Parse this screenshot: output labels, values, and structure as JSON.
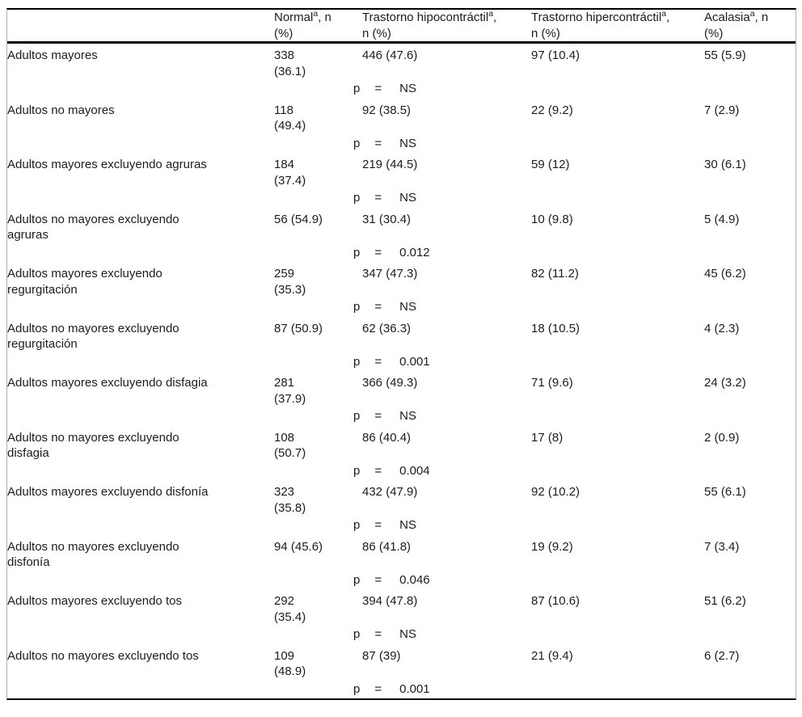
{
  "page": {
    "background": "#ffffff",
    "text_color": "#1c1c1c",
    "rule_color": "#000000"
  },
  "table": {
    "p_label": "p",
    "p_eq": "=",
    "header": {
      "label_col": "",
      "cols": [
        {
          "pre": "Normal",
          "sup": "a",
          "post": ", n",
          "line2": "(%)"
        },
        {
          "pre": "Trastorno hipocontráctil",
          "sup": "a",
          "post": ",",
          "line2": "n (%)"
        },
        {
          "pre": "Trastorno hipercontráctil",
          "sup": "a",
          "post": ",",
          "line2": "n (%)"
        },
        {
          "pre": "Acalasia",
          "sup": "a",
          "post": ", n",
          "line2": "(%)"
        }
      ]
    },
    "rows": [
      {
        "type": "data",
        "label_lines": [
          "Adultos mayores"
        ],
        "normal_lines": [
          "338",
          "(36.1)"
        ],
        "hipo": "446 (47.6)",
        "hiper": "97 (10.4)",
        "acalasia": "55 (5.9)"
      },
      {
        "type": "p",
        "value": "NS"
      },
      {
        "type": "data",
        "label_lines": [
          "Adultos no mayores"
        ],
        "normal_lines": [
          "118",
          "(49.4)"
        ],
        "hipo": "92 (38.5)",
        "hiper": "22 (9.2)",
        "acalasia": "7 (2.9)"
      },
      {
        "type": "p",
        "value": "NS"
      },
      {
        "type": "data",
        "label_lines": [
          "Adultos mayores excluyendo agruras"
        ],
        "normal_lines": [
          "184",
          "(37.4)"
        ],
        "hipo": "219 (44.5)",
        "hiper": "59 (12)",
        "acalasia": "30 (6.1)"
      },
      {
        "type": "p",
        "value": "NS"
      },
      {
        "type": "data",
        "label_lines": [
          "Adultos no mayores excluyendo",
          "agruras"
        ],
        "normal_lines": [
          "56 (54.9)"
        ],
        "hipo": "31 (30.4)",
        "hiper": "10 (9.8)",
        "acalasia": "5 (4.9)"
      },
      {
        "type": "p",
        "value": "0.012"
      },
      {
        "type": "data",
        "label_lines": [
          "Adultos mayores excluyendo",
          "regurgitación"
        ],
        "normal_lines": [
          "259",
          "(35.3)"
        ],
        "hipo": "347 (47.3)",
        "hiper": "82 (11.2)",
        "acalasia": "45 (6.2)"
      },
      {
        "type": "p",
        "value": "NS"
      },
      {
        "type": "data",
        "label_lines": [
          "Adultos no mayores excluyendo",
          "regurgitación"
        ],
        "normal_lines": [
          "87 (50.9)"
        ],
        "hipo": "62 (36.3)",
        "hiper": "18 (10.5)",
        "acalasia": "4 (2.3)"
      },
      {
        "type": "p",
        "value": "0.001"
      },
      {
        "type": "data",
        "label_lines": [
          "Adultos mayores excluyendo disfagia"
        ],
        "normal_lines": [
          "281",
          "(37.9)"
        ],
        "hipo": "366 (49.3)",
        "hiper": "71 (9.6)",
        "acalasia": "24 (3.2)"
      },
      {
        "type": "p",
        "value": "NS"
      },
      {
        "type": "data",
        "label_lines": [
          "Adultos no mayores excluyendo",
          "disfagia"
        ],
        "normal_lines": [
          "108",
          "(50.7)"
        ],
        "hipo": "86 (40.4)",
        "hiper": "17 (8)",
        "acalasia": "2 (0.9)"
      },
      {
        "type": "p",
        "value": "0.004"
      },
      {
        "type": "data",
        "label_lines": [
          "Adultos mayores excluyendo disfonía"
        ],
        "normal_lines": [
          "323",
          "(35.8)"
        ],
        "hipo": "432 (47.9)",
        "hiper": "92 (10.2)",
        "acalasia": "55 (6.1)"
      },
      {
        "type": "p",
        "value": "NS"
      },
      {
        "type": "data",
        "label_lines": [
          "Adultos no mayores excluyendo",
          "disfonía"
        ],
        "normal_lines": [
          "94 (45.6)"
        ],
        "hipo": "86 (41.8)",
        "hiper": "19 (9.2)",
        "acalasia": "7 (3.4)"
      },
      {
        "type": "p",
        "value": "0.046"
      },
      {
        "type": "data",
        "label_lines": [
          "Adultos mayores excluyendo tos"
        ],
        "normal_lines": [
          "292",
          "(35.4)"
        ],
        "hipo": "394 (47.8)",
        "hiper": "87 (10.6)",
        "acalasia": "51 (6.2)"
      },
      {
        "type": "p",
        "value": "NS"
      },
      {
        "type": "data",
        "label_lines": [
          "Adultos no mayores excluyendo tos"
        ],
        "normal_lines": [
          "109",
          "(48.9)"
        ],
        "hipo": "87 (39)",
        "hiper": "21 (9.4)",
        "acalasia": "6 (2.7)"
      },
      {
        "type": "p",
        "value": "0.001"
      }
    ]
  }
}
